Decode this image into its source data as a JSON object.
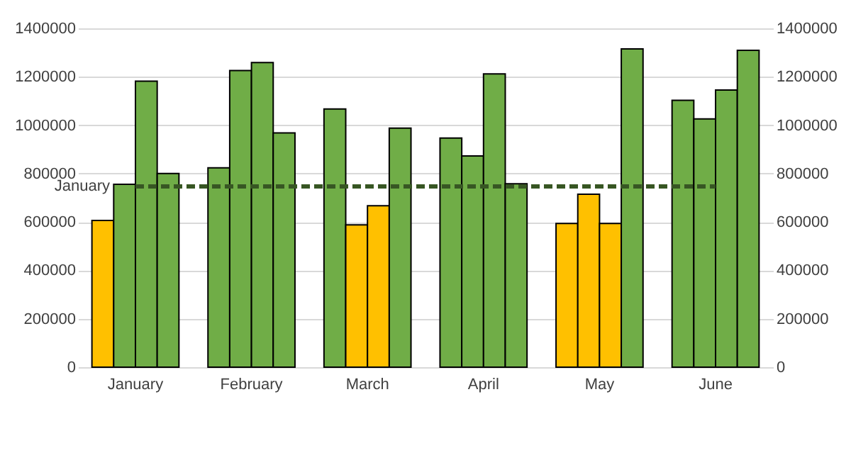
{
  "chart_data": {
    "type": "bar",
    "categories": [
      "January",
      "February",
      "March",
      "April",
      "May",
      "June"
    ],
    "series": [
      {
        "values": [
          606000,
          824000,
          1067000,
          947000,
          594000,
          1103000
        ],
        "colors": [
          "#ffc000",
          "#70ad47",
          "#70ad47",
          "#70ad47",
          "#ffc000",
          "#70ad47"
        ]
      },
      {
        "values": [
          756000,
          1226000,
          588000,
          873000,
          715000,
          1026000
        ],
        "colors": [
          "#70ad47",
          "#70ad47",
          "#ffc000",
          "#70ad47",
          "#ffc000",
          "#70ad47"
        ]
      },
      {
        "values": [
          1182000,
          1259000,
          667000,
          1212000,
          594000,
          1145000
        ],
        "colors": [
          "#70ad47",
          "#70ad47",
          "#ffc000",
          "#70ad47",
          "#ffc000",
          "#70ad47"
        ]
      },
      {
        "values": [
          800000,
          968000,
          988000,
          758000,
          1315000,
          1309000
        ],
        "colors": [
          "#70ad47",
          "#70ad47",
          "#70ad47",
          "#70ad47",
          "#70ad47",
          "#70ad47"
        ]
      },
      {
        "type": "line",
        "name": "January",
        "color": "#375623",
        "line_style": "dashed",
        "values": [
          747000,
          747000,
          747000,
          747000,
          747000,
          747000
        ]
      }
    ],
    "ylim": [
      0,
      1400000
    ],
    "yticks": [
      0,
      200000,
      400000,
      600000,
      800000,
      1000000,
      1200000,
      1400000
    ],
    "y2lim": [
      0,
      1400000
    ],
    "y2ticks": [
      0,
      200000,
      400000,
      600000,
      800000,
      1000000,
      1200000,
      1400000
    ],
    "grid": "y",
    "legend": false
  }
}
